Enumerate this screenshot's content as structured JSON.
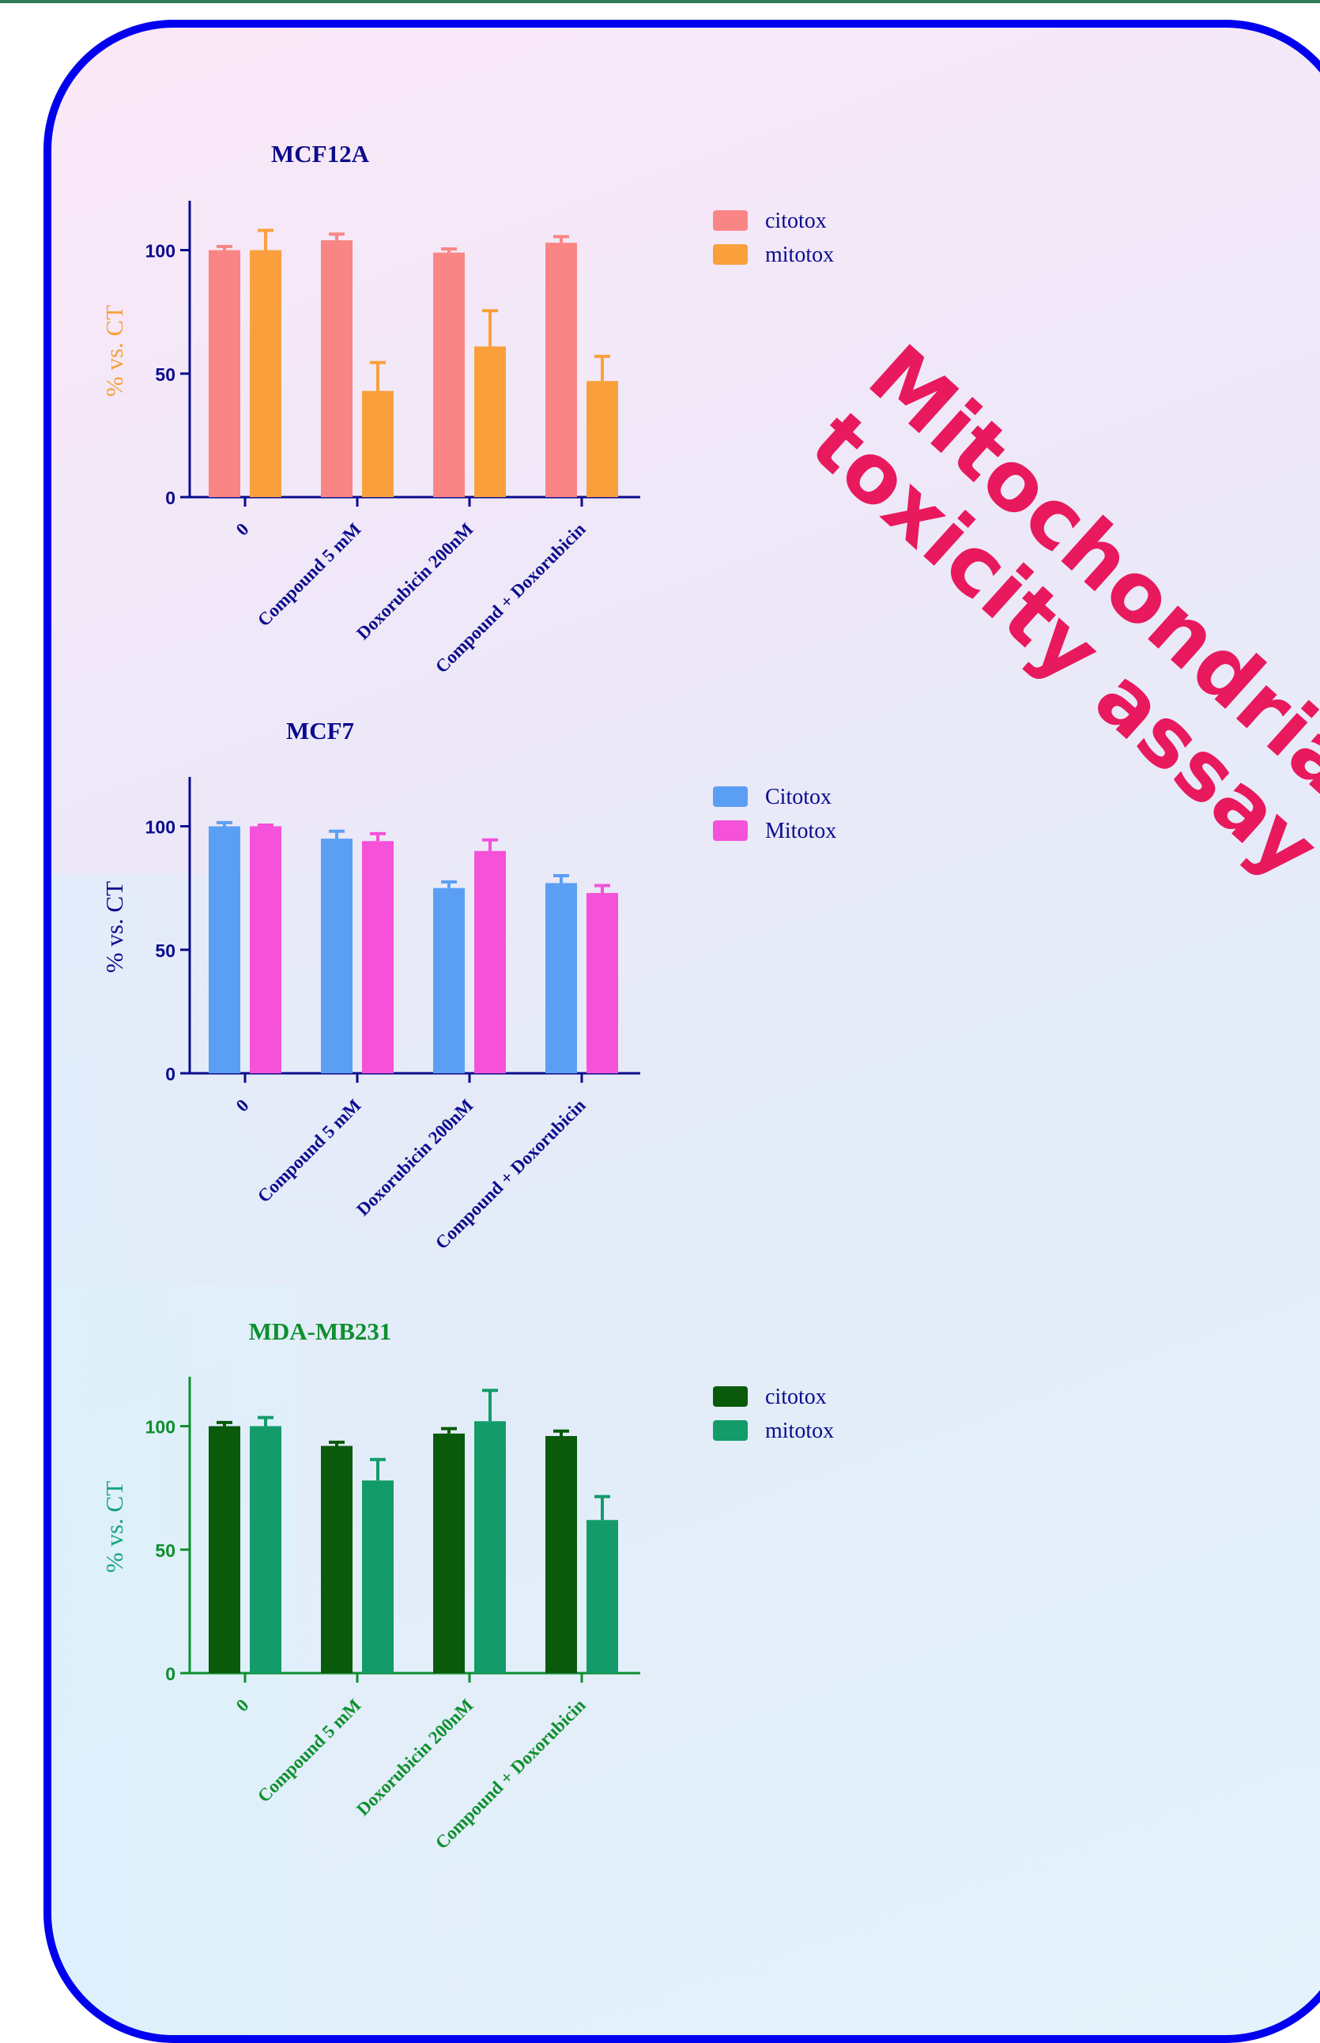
{
  "headline": {
    "line1": "Mitochondrial",
    "line2": "toxicity assay",
    "color": "#e8195d"
  },
  "frame_color": "#0000ee",
  "chart_data": [
    {
      "type": "bar",
      "title": "MCF12A",
      "ylabel": "% vs. CT",
      "xlabel": "",
      "ylim": [
        0,
        120
      ],
      "yticks": [
        0,
        50,
        100
      ],
      "categories": [
        "0",
        "Compound  5 mM",
        "Doxorubicin 200nM",
        "Compound + Doxorubicin"
      ],
      "legend_position": "top-right",
      "colors": {
        "title": "#0b0b8c",
        "axis": "#0b0b8c",
        "tick": "#0b0b8c",
        "ylabel": "#f7a03a",
        "legend_text": "#0b0b8c"
      },
      "series": [
        {
          "name": "citotox",
          "color": "#fa8585",
          "values": [
            100,
            104,
            99,
            103
          ],
          "errors": [
            1.5,
            2.5,
            1.5,
            2.5
          ]
        },
        {
          "name": "mitotox",
          "color": "#f9a03d",
          "values": [
            100,
            43,
            61,
            47
          ],
          "errors": [
            8,
            11.5,
            14.5,
            10
          ]
        }
      ]
    },
    {
      "type": "bar",
      "title": "MCF7",
      "ylabel": "% vs. CT",
      "xlabel": "",
      "ylim": [
        0,
        120
      ],
      "yticks": [
        0,
        50,
        100
      ],
      "categories": [
        "0",
        "Compound  5 mM",
        "Doxorubicin 200nM",
        "Compound + Doxorubicin"
      ],
      "legend_position": "top-right",
      "colors": {
        "title": "#0b0b8c",
        "axis": "#0b0b8c",
        "tick": "#0b0b8c",
        "ylabel": "#0b0b8c",
        "legend_text": "#0b0b8c"
      },
      "series": [
        {
          "name": "Citotox",
          "color": "#5b9ff5",
          "values": [
            100,
            95,
            75,
            77
          ],
          "errors": [
            1.5,
            3,
            2.5,
            3
          ]
        },
        {
          "name": "Mitotox",
          "color": "#f551d9",
          "values": [
            100,
            94,
            90,
            73
          ],
          "errors": [
            0.5,
            3,
            4.5,
            3
          ]
        }
      ]
    },
    {
      "type": "bar",
      "title": "MDA-MB231",
      "ylabel": "% vs. CT",
      "xlabel": "",
      "ylim": [
        0,
        120
      ],
      "yticks": [
        0,
        50,
        100
      ],
      "categories": [
        "0",
        "Compound  5 mM",
        "Doxorubicin 200nM",
        "Compound + Doxorubicin"
      ],
      "legend_position": "top-right",
      "colors": {
        "title": "#0e8f2e",
        "axis": "#0e8f2e",
        "tick": "#0e8f2e",
        "ylabel": "#15a37a",
        "legend_text": "#0b0b8c"
      },
      "series": [
        {
          "name": "citotox",
          "color": "#0a5a0c",
          "values": [
            100,
            92,
            97,
            96
          ],
          "errors": [
            1.5,
            1.5,
            2,
            2
          ]
        },
        {
          "name": "mitotox",
          "color": "#139b6a",
          "values": [
            100,
            78,
            102,
            62
          ],
          "errors": [
            3.5,
            8.5,
            12.5,
            9.5
          ]
        }
      ]
    }
  ]
}
